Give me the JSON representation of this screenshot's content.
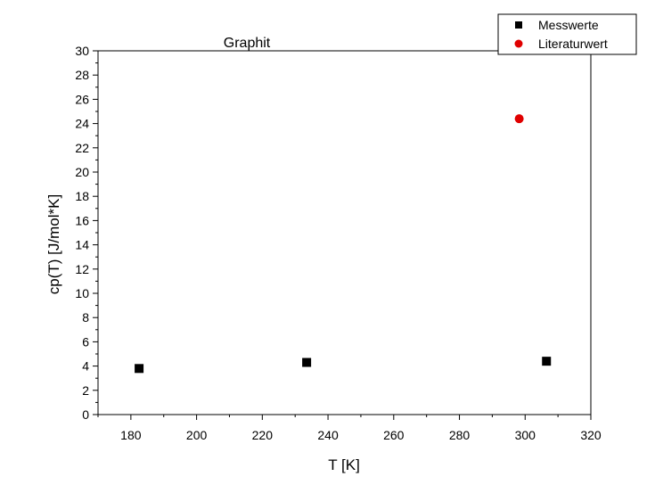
{
  "chart_data": {
    "type": "scatter",
    "title": "Graphit",
    "xlabel": "T [K]",
    "ylabel": "cp(T) [J/mol*K]",
    "xlim": [
      170,
      320
    ],
    "ylim": [
      0,
      30
    ],
    "xticks": [
      180,
      200,
      220,
      240,
      260,
      280,
      300,
      320
    ],
    "yticks": [
      0,
      2,
      4,
      6,
      8,
      10,
      12,
      14,
      16,
      18,
      20,
      22,
      24,
      26,
      28,
      30
    ],
    "grid": false,
    "legend_position": "top-right",
    "series": [
      {
        "name": "Messwerte",
        "marker": "square",
        "color": "#000000",
        "points": [
          {
            "x": 182.5,
            "y": 3.8
          },
          {
            "x": 233.5,
            "y": 4.3
          },
          {
            "x": 306.5,
            "y": 4.4
          }
        ]
      },
      {
        "name": "Literaturwert",
        "marker": "circle",
        "color": "#e00000",
        "points": [
          {
            "x": 298.2,
            "y": 24.4
          }
        ]
      }
    ]
  }
}
